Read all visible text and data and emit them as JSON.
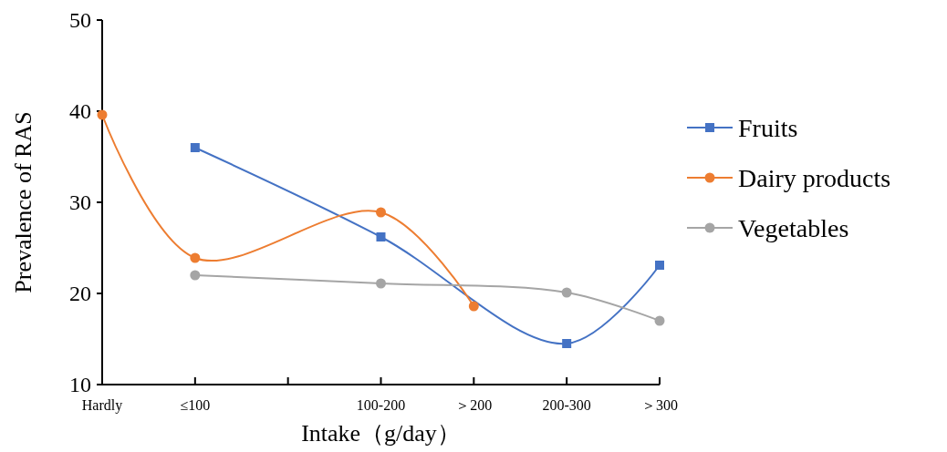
{
  "chart_data": {
    "type": "line",
    "xlabel": "Intake（g/day）",
    "ylabel": "Prevalence of RAS",
    "categories": [
      "Hardly",
      "≤100",
      null,
      "100-200",
      "＞200",
      "200-300",
      "＞300"
    ],
    "ylim": [
      10,
      50
    ],
    "yticks": [
      10,
      20,
      30,
      40,
      50
    ],
    "legend": "right",
    "grid": false,
    "series": [
      {
        "name": "Fruits",
        "color": "#4472c4",
        "marker": "square",
        "values": [
          null,
          36.0,
          null,
          26.2,
          null,
          14.5,
          23.1
        ]
      },
      {
        "name": "Dairy products",
        "color": "#ed7d31",
        "marker": "circle",
        "values": [
          39.6,
          23.9,
          null,
          28.9,
          18.6,
          null,
          null
        ]
      },
      {
        "name": "Vegetables",
        "color": "#a5a5a5",
        "marker": "circle",
        "values": [
          null,
          22.0,
          null,
          21.1,
          null,
          20.1,
          17.0
        ]
      }
    ]
  }
}
